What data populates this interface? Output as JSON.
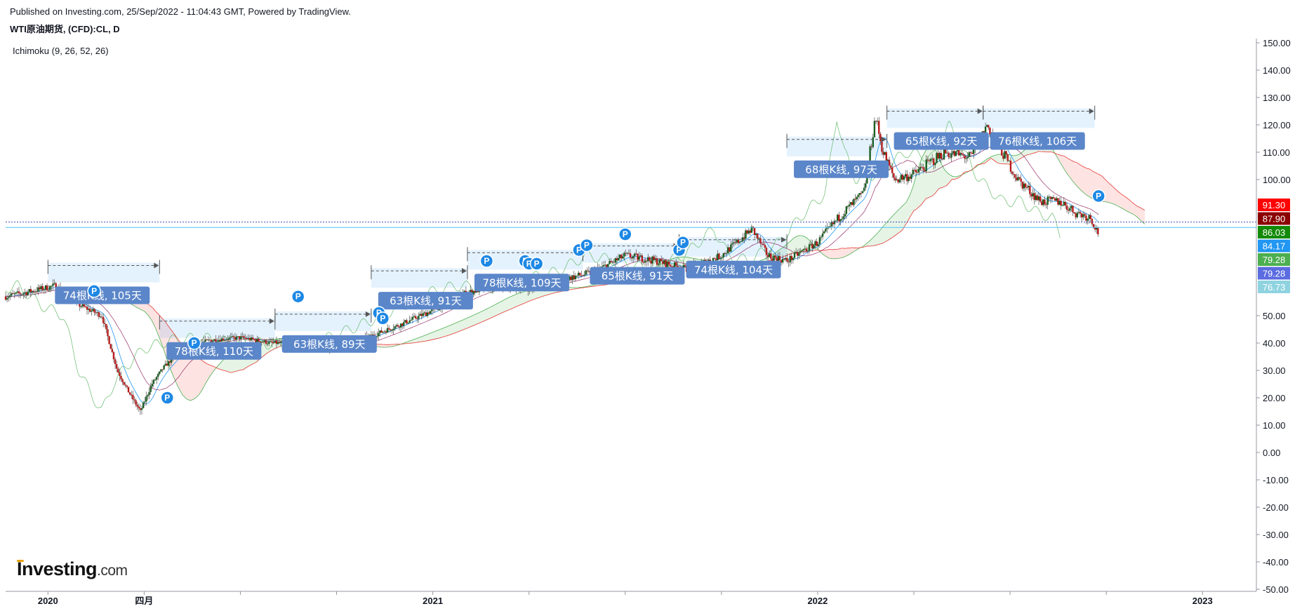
{
  "header": {
    "published": "Published on Investing.com, 25/Sep/2022 - 11:04:43 GMT, Powered by TradingView.",
    "symbol": "WTI原油期货, (CFD):CL, D",
    "indicator": "Ichimoku (9, 26, 52, 26)"
  },
  "logo": {
    "main": "Investing",
    "suffix": ".com"
  },
  "chart_data": {
    "type": "candlestick",
    "y_axis": {
      "range": [
        -50,
        150
      ],
      "ticks": [
        "150.00",
        "140.00",
        "130.00",
        "120.00",
        "110.00",
        "100.00",
        "50.00",
        "40.00",
        "30.00",
        "20.00",
        "10.00",
        "0.00",
        "-10.00",
        "-20.00",
        "-30.00",
        "-40.00",
        "-50.00"
      ]
    },
    "x_axis": {
      "labels": [
        {
          "text": "2020",
          "date": 2020.0
        },
        {
          "text": "四月",
          "date": 2020.25
        },
        {
          "text": "2021",
          "date": 2021.0
        },
        {
          "text": "2022",
          "date": 2022.0
        },
        {
          "text": "2023",
          "date": 2023.0
        }
      ],
      "minor_ticks": [
        2020.5,
        2020.75,
        2021.25,
        2021.5,
        2021.75,
        2022.25,
        2022.5,
        2022.75
      ],
      "range": [
        2019.89,
        2023.14
      ]
    },
    "price_scale_labels": [
      {
        "text": "91.30",
        "color": "#ff0000"
      },
      {
        "text": "87.90",
        "color": "#8b0000"
      },
      {
        "text": "86.03",
        "color": "#138a07"
      },
      {
        "text": "84.17",
        "color": "#2196f3"
      },
      {
        "text": "79.28",
        "color": "#4caf50"
      },
      {
        "text": "79.28",
        "color": "#5b6be0"
      },
      {
        "text": "76.73",
        "color": "#8fd3e0"
      }
    ],
    "horizontal_lines": [
      {
        "value": 84.5,
        "color": "#3f51b5",
        "style": "dotted"
      },
      {
        "value": 82.5,
        "color": "#4fc3f7",
        "style": "solid"
      }
    ],
    "close_series": {
      "dates": [
        2019.89,
        2019.96,
        2020.02,
        2020.08,
        2020.14,
        2020.18,
        2020.21,
        2020.24,
        2020.27,
        2020.3,
        2020.35,
        2020.42,
        2020.5,
        2020.58,
        2020.66,
        2020.75,
        2020.83,
        2020.92,
        2021.0,
        2021.08,
        2021.16,
        2021.25,
        2021.33,
        2021.42,
        2021.5,
        2021.58,
        2021.66,
        2021.75,
        2021.83,
        2021.87,
        2021.92,
        2022.0,
        2022.06,
        2022.12,
        2022.15,
        2022.17,
        2022.2,
        2022.25,
        2022.33,
        2022.4,
        2022.44,
        2022.48,
        2022.52,
        2022.58,
        2022.63,
        2022.67,
        2022.71,
        2022.73
      ],
      "close": [
        57,
        59,
        61,
        54,
        50,
        30,
        22,
        15,
        25,
        31,
        38,
        41,
        42,
        40,
        40,
        38,
        42,
        47,
        52,
        58,
        61,
        60,
        63,
        66,
        72,
        70,
        67,
        72,
        82,
        72,
        70,
        77,
        87,
        95,
        123,
        110,
        100,
        102,
        110,
        108,
        120,
        110,
        100,
        92,
        92,
        88,
        86,
        80
      ]
    },
    "annotations": [
      {
        "label": "74根K线, 105天",
        "start": 2020.0,
        "end": 2020.29
      },
      {
        "label": "78根K线, 110天",
        "start": 2020.29,
        "end": 2020.59
      },
      {
        "label": "63根K线, 89天",
        "start": 2020.59,
        "end": 2020.84
      },
      {
        "label": "63根K线, 91天",
        "start": 2020.84,
        "end": 2021.09
      },
      {
        "label": "78根K线, 109天",
        "start": 2021.09,
        "end": 2021.39
      },
      {
        "label": "65根K线, 91天",
        "start": 2021.39,
        "end": 2021.64
      },
      {
        "label": "74根K线, 104天",
        "start": 2021.64,
        "end": 2021.92
      },
      {
        "label": "68根K线, 97天",
        "start": 2021.92,
        "end": 2022.18
      },
      {
        "label": "65根K线, 92天",
        "start": 2022.18,
        "end": 2022.43
      },
      {
        "label": "76根K线, 106天",
        "start": 2022.43,
        "end": 2022.72
      }
    ],
    "markers": {
      "label": "P",
      "points": [
        [
          2020.12,
          59
        ],
        [
          2020.31,
          20
        ],
        [
          2020.38,
          40
        ],
        [
          2020.65,
          57
        ],
        [
          2020.86,
          51
        ],
        [
          2020.87,
          49
        ],
        [
          2021.14,
          70
        ],
        [
          2021.24,
          70
        ],
        [
          2021.25,
          69
        ],
        [
          2021.27,
          69
        ],
        [
          2021.38,
          74
        ],
        [
          2021.4,
          76
        ],
        [
          2021.5,
          80
        ],
        [
          2021.64,
          74
        ],
        [
          2021.65,
          77
        ],
        [
          2022.73,
          94
        ]
      ]
    }
  }
}
